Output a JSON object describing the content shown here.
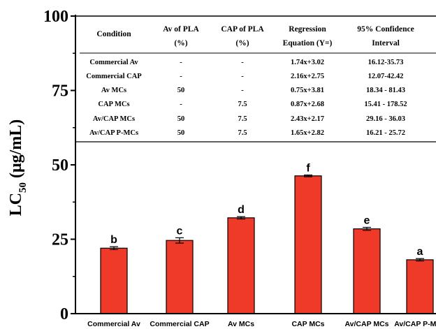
{
  "chart_data": {
    "type": "bar",
    "title": "",
    "xlabel": "",
    "ylabel": {
      "main": "LC",
      "sub": "50",
      "unit": " (μg/mL)"
    },
    "ylim": [
      0,
      100
    ],
    "yticks": [
      0,
      25,
      50,
      75,
      100
    ],
    "grid": false,
    "bar_color": "#ef3a2a",
    "categories": [
      "Commercial Av",
      "Commercial CAP",
      "Av MCs",
      "CAP MCs",
      "Av/CAP MCs",
      "Av/CAP P-MCs"
    ],
    "values": [
      22.0,
      24.6,
      32.2,
      46.3,
      28.5,
      18.1
    ],
    "errors": [
      0.5,
      0.9,
      0.4,
      0.3,
      0.5,
      0.4
    ],
    "significance": [
      "b",
      "c",
      "d",
      "f",
      "e",
      "a"
    ],
    "table": {
      "headers": [
        [
          "Condition"
        ],
        [
          "Av of PLA",
          "(%)"
        ],
        [
          "CAP of PLA",
          "(%)"
        ],
        [
          "Regression",
          "Equation (Y=)"
        ],
        [
          "95% Confidence",
          "Interval"
        ]
      ],
      "rows": [
        [
          "Commercial Av",
          "-",
          "-",
          "1.74x+3.02",
          "16.12-35.73"
        ],
        [
          "Commercial CAP",
          "-",
          "-",
          "2.16x+2.75",
          "12.07-42.42"
        ],
        [
          "Av MCs",
          "50",
          "-",
          "0.75x+3.81",
          "18.34 - 81.43"
        ],
        [
          "CAP MCs",
          "-",
          "7.5",
          "0.87x+2.68",
          "15.41 - 178.52"
        ],
        [
          "Av/CAP MCs",
          "50",
          "7.5",
          "2.43x+2.17",
          "29.16 - 36.03"
        ],
        [
          "Av/CAP P-MCs",
          "50",
          "7.5",
          "1.65x+2.82",
          "16.21 - 25.72"
        ]
      ]
    }
  }
}
